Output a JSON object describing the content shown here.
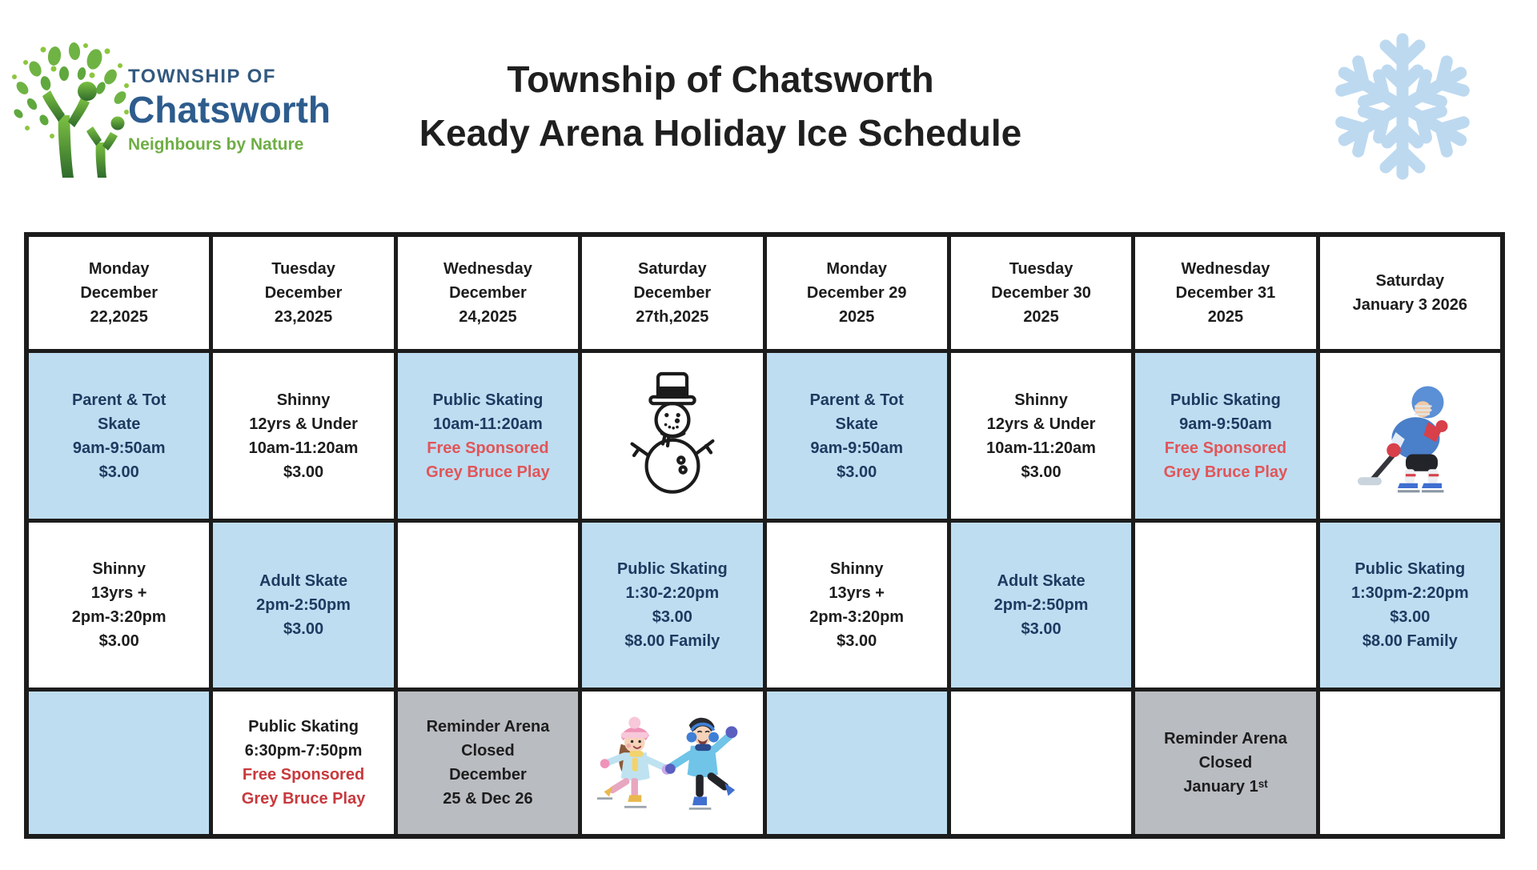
{
  "logo": {
    "township_of": "TOWNSHIP OF",
    "name": "Chatsworth",
    "tagline": "Neighbours by Nature"
  },
  "title": {
    "line1": "Township of Chatsworth",
    "line2": "Keady Arena Holiday Ice Schedule"
  },
  "colors": {
    "border": "#1C1C1C",
    "snowflake": "#BDD9F0",
    "logo_blue": "#2D5C8D",
    "logo_green": "#6FAE45",
    "cell": {
      "blue": "#BEDDF1",
      "white": "#FFFFFF",
      "grey": "#B9BCC1"
    },
    "text": {
      "navy": "#1E3A60",
      "black": "#1D1D1D",
      "red": "#E15558",
      "redDark": "#C8393D"
    }
  },
  "schedule": {
    "days": [
      {
        "header": [
          "Monday",
          "December",
          "22,2025"
        ],
        "slots": [
          {
            "bg": "blue",
            "lines": [
              {
                "t": "Parent & Tot",
                "c": "navy"
              },
              {
                "t": "Skate",
                "c": "navy"
              },
              {
                "t": "9am-9:50am",
                "c": "navy"
              },
              {
                "t": "$3.00",
                "c": "navy"
              }
            ]
          },
          {
            "bg": "white",
            "lines": [
              {
                "t": "Shinny",
                "c": "black"
              },
              {
                "t": "13yrs +",
                "c": "black"
              },
              {
                "t": "2pm-3:20pm",
                "c": "black"
              },
              {
                "t": "$3.00",
                "c": "black"
              }
            ]
          },
          {
            "bg": "blue",
            "lines": []
          }
        ]
      },
      {
        "header": [
          "Tuesday",
          "December",
          "23,2025"
        ],
        "slots": [
          {
            "bg": "white",
            "lines": [
              {
                "t": "Shinny",
                "c": "black"
              },
              {
                "t": "12yrs & Under",
                "c": "black"
              },
              {
                "t": "10am-11:20am",
                "c": "black"
              },
              {
                "t": "$3.00",
                "c": "black"
              }
            ]
          },
          {
            "bg": "blue",
            "lines": [
              {
                "t": "Adult Skate",
                "c": "navy"
              },
              {
                "t": "2pm-2:50pm",
                "c": "navy"
              },
              {
                "t": "$3.00",
                "c": "navy"
              }
            ]
          },
          {
            "bg": "white",
            "lines": [
              {
                "t": "Public Skating",
                "c": "black"
              },
              {
                "t": "6:30pm-7:50pm",
                "c": "black"
              },
              {
                "t": "Free Sponsored",
                "c": "redDark"
              },
              {
                "t": "Grey Bruce Play",
                "c": "redDark"
              }
            ]
          }
        ]
      },
      {
        "header": [
          "Wednesday",
          "December",
          "24,2025"
        ],
        "slots": [
          {
            "bg": "blue",
            "lines": [
              {
                "t": "Public Skating",
                "c": "navy"
              },
              {
                "t": "10am-11:20am",
                "c": "navy"
              },
              {
                "t": "Free Sponsored",
                "c": "red"
              },
              {
                "t": "Grey Bruce Play",
                "c": "red"
              }
            ]
          },
          {
            "bg": "white",
            "lines": []
          },
          {
            "bg": "grey",
            "lines": [
              {
                "t": "Reminder Arena",
                "c": "black"
              },
              {
                "t": "Closed",
                "c": "black"
              },
              {
                "t": "December",
                "c": "black"
              },
              {
                "t": "25 & Dec 26",
                "c": "black"
              }
            ]
          }
        ]
      },
      {
        "header": [
          "Saturday",
          "December",
          "27th,2025"
        ],
        "slots": [
          {
            "bg": "white",
            "icon": "snowman",
            "lines": []
          },
          {
            "bg": "blue",
            "lines": [
              {
                "t": "Public Skating",
                "c": "navy"
              },
              {
                "t": "1:30-2:20pm",
                "c": "navy"
              },
              {
                "t": "$3.00",
                "c": "navy"
              },
              {
                "t": "$8.00 Family",
                "c": "navy"
              }
            ]
          },
          {
            "bg": "white",
            "icon": "kids-skating",
            "lines": []
          }
        ]
      },
      {
        "header": [
          "Monday",
          "December 29",
          "2025"
        ],
        "slots": [
          {
            "bg": "blue",
            "lines": [
              {
                "t": "Parent & Tot",
                "c": "navy"
              },
              {
                "t": "Skate",
                "c": "navy"
              },
              {
                "t": "9am-9:50am",
                "c": "navy"
              },
              {
                "t": "$3.00",
                "c": "navy"
              }
            ]
          },
          {
            "bg": "white",
            "lines": [
              {
                "t": "Shinny",
                "c": "black"
              },
              {
                "t": "13yrs +",
                "c": "black"
              },
              {
                "t": "2pm-3:20pm",
                "c": "black"
              },
              {
                "t": "$3.00",
                "c": "black"
              }
            ]
          },
          {
            "bg": "blue",
            "lines": []
          }
        ]
      },
      {
        "header": [
          "Tuesday",
          "December 30",
          "2025"
        ],
        "slots": [
          {
            "bg": "white",
            "lines": [
              {
                "t": "Shinny",
                "c": "black"
              },
              {
                "t": "12yrs & Under",
                "c": "black"
              },
              {
                "t": "10am-11:20am",
                "c": "black"
              },
              {
                "t": "$3.00",
                "c": "black"
              }
            ]
          },
          {
            "bg": "blue",
            "lines": [
              {
                "t": "Adult Skate",
                "c": "navy"
              },
              {
                "t": "2pm-2:50pm",
                "c": "navy"
              },
              {
                "t": "$3.00",
                "c": "navy"
              }
            ]
          },
          {
            "bg": "white",
            "lines": []
          }
        ]
      },
      {
        "header": [
          "Wednesday",
          "December 31",
          "2025"
        ],
        "slots": [
          {
            "bg": "blue",
            "lines": [
              {
                "t": "Public Skating",
                "c": "navy"
              },
              {
                "t": "9am-9:50am",
                "c": "navy"
              },
              {
                "t": "Free Sponsored",
                "c": "red"
              },
              {
                "t": "Grey Bruce Play",
                "c": "red"
              }
            ]
          },
          {
            "bg": "white",
            "lines": []
          },
          {
            "bg": "grey",
            "lines": [
              {
                "t": "Reminder Arena",
                "c": "black"
              },
              {
                "t": "Closed",
                "c": "black"
              },
              {
                "t": "January 1ˢᵗ",
                "c": "black"
              }
            ]
          }
        ]
      },
      {
        "header": [
          "Saturday",
          "January 3 2026"
        ],
        "slots": [
          {
            "bg": "white",
            "icon": "hockey-player",
            "lines": []
          },
          {
            "bg": "blue",
            "lines": [
              {
                "t": "Public Skating",
                "c": "navy"
              },
              {
                "t": "1:30pm-2:20pm",
                "c": "navy"
              },
              {
                "t": "$3.00",
                "c": "navy"
              },
              {
                "t": "$8.00 Family",
                "c": "navy"
              }
            ]
          },
          {
            "bg": "white",
            "lines": []
          }
        ]
      }
    ]
  }
}
